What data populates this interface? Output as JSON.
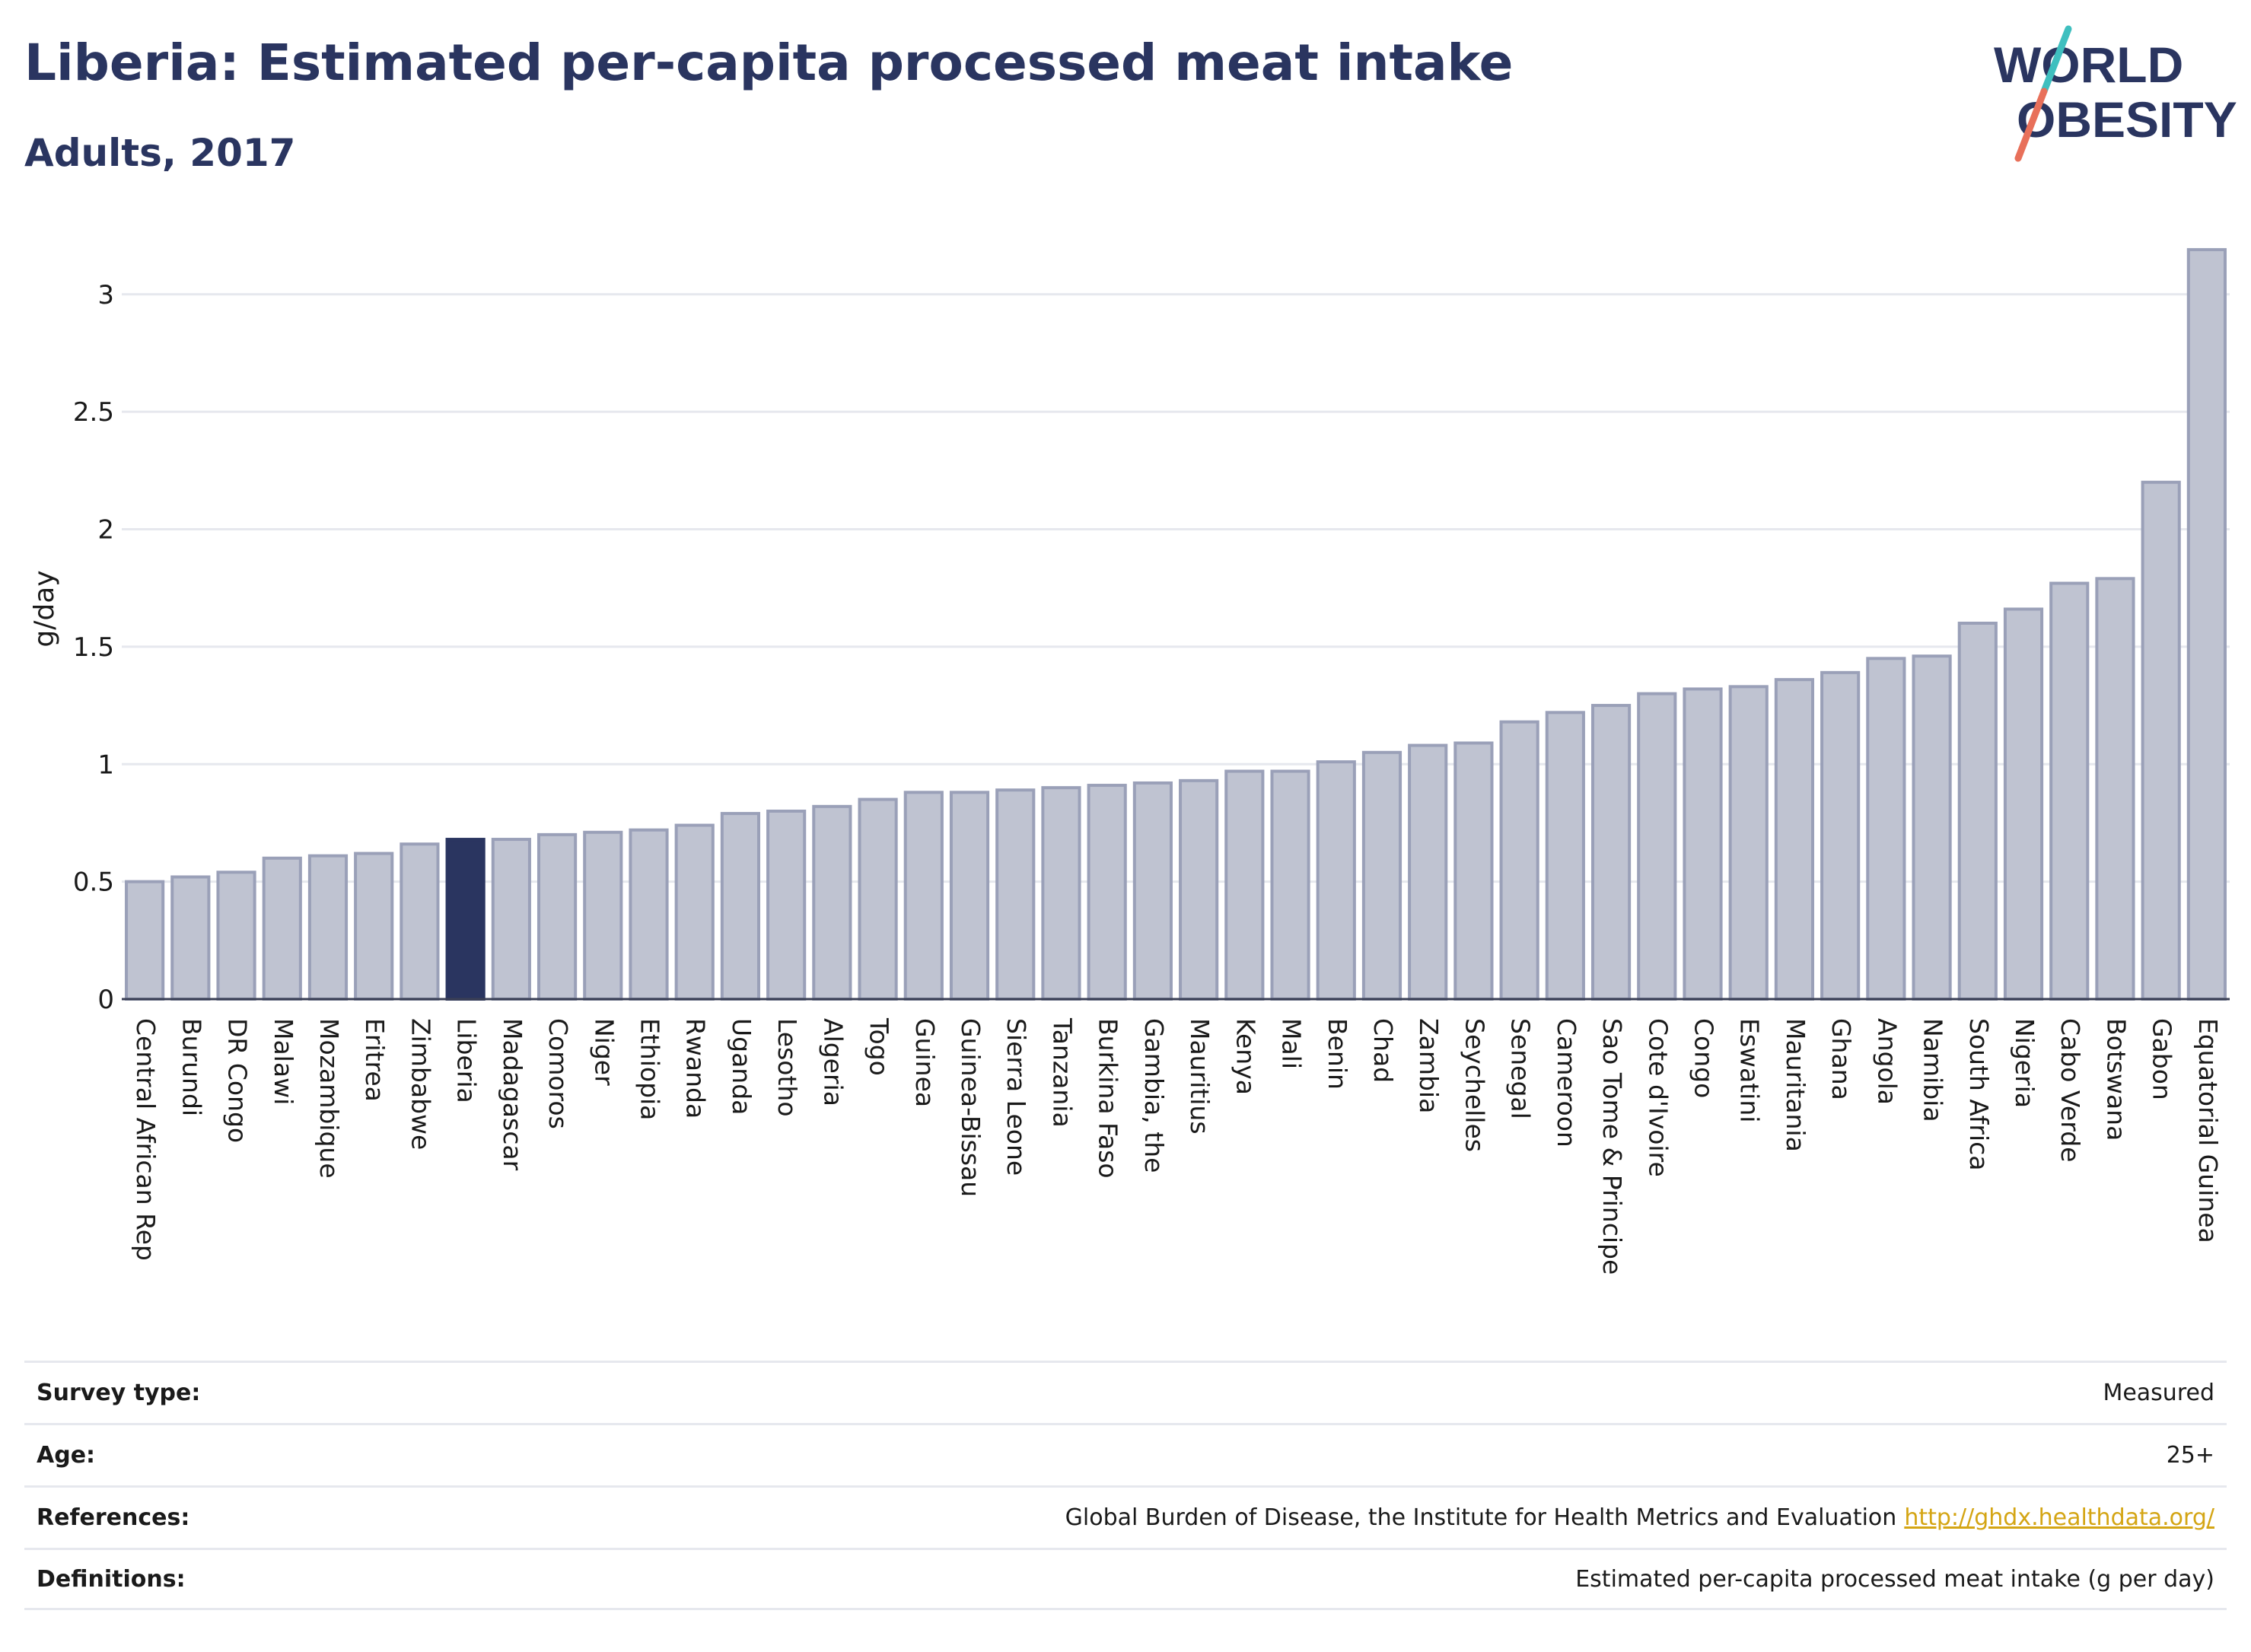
{
  "header": {
    "title": "Liberia: Estimated per-capita processed meat intake",
    "subtitle": "Adults, 2017"
  },
  "logo": {
    "line1": "WORLD",
    "line2": "OBESITY"
  },
  "colors": {
    "bar": "#bfc3d1",
    "bar_stroke": "#9aa0b8",
    "highlight": "#2a3560",
    "slash_teal": "#3fbfbf",
    "slash_coral": "#e8705a"
  },
  "chart_data": {
    "type": "bar",
    "title": "Liberia: Estimated per-capita processed meat intake",
    "subtitle": "Adults, 2017",
    "ylabel": "g/day",
    "xlabel": "",
    "ylim": [
      0,
      3.2
    ],
    "yticks": [
      0,
      0.5,
      1,
      1.5,
      2,
      2.5,
      3
    ],
    "ytick_labels": [
      "0",
      "0.5",
      "1",
      "1.5",
      "2",
      "2.5",
      "3"
    ],
    "grid": true,
    "highlight": "Liberia",
    "categories": [
      "Central African Rep",
      "Burundi",
      "DR Congo",
      "Malawi",
      "Mozambique",
      "Eritrea",
      "Zimbabwe",
      "Liberia",
      "Madagascar",
      "Comoros",
      "Niger",
      "Ethiopia",
      "Rwanda",
      "Uganda",
      "Lesotho",
      "Algeria",
      "Togo",
      "Guinea",
      "Guinea-Bissau",
      "Sierra Leone",
      "Tanzania",
      "Burkina Faso",
      "Gambia, the",
      "Mauritius",
      "Kenya",
      "Mali",
      "Benin",
      "Chad",
      "Zambia",
      "Seychelles",
      "Senegal",
      "Cameroon",
      "Sao Tome & Principe",
      "Cote d'Ivoire",
      "Congo",
      "Eswatini",
      "Mauritania",
      "Ghana",
      "Angola",
      "Namibia",
      "South Africa",
      "Nigeria",
      "Cabo Verde",
      "Botswana",
      "Gabon",
      "Equatorial Guinea"
    ],
    "values": [
      0.5,
      0.52,
      0.54,
      0.6,
      0.61,
      0.62,
      0.66,
      0.68,
      0.68,
      0.7,
      0.71,
      0.72,
      0.74,
      0.79,
      0.8,
      0.82,
      0.85,
      0.88,
      0.88,
      0.89,
      0.9,
      0.91,
      0.92,
      0.93,
      0.97,
      0.97,
      1.01,
      1.05,
      1.08,
      1.09,
      1.18,
      1.22,
      1.25,
      1.3,
      1.32,
      1.33,
      1.36,
      1.39,
      1.45,
      1.46,
      1.6,
      1.66,
      1.77,
      1.79,
      2.2,
      3.19
    ]
  },
  "footer": {
    "survey_label": "Survey type:",
    "survey_value": "Measured",
    "age_label": "Age:",
    "age_value": "25+",
    "references_label": "References:",
    "references_value": "Global Burden of Disease, the Institute for Health Metrics and Evaluation",
    "references_link": "http://ghdx.healthdata.org/",
    "definitions_label": "Definitions:",
    "definitions_value": "Estimated per-capita processed meat intake (g per day)"
  }
}
